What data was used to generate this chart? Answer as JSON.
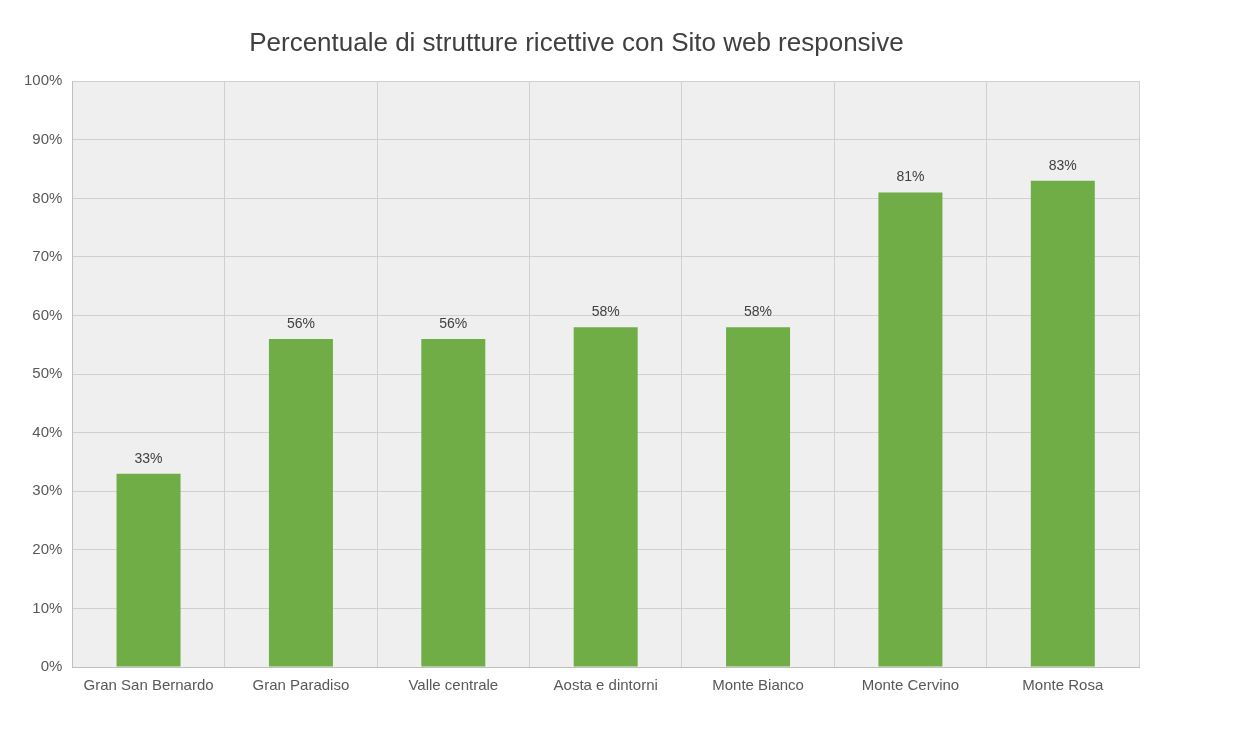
{
  "chart_data": {
    "type": "bar",
    "title": "Percentuale di strutture ricettive con Sito web responsive",
    "categories": [
      "Gran San Bernardo",
      "Gran Paradiso",
      "Valle centrale",
      "Aosta e dintorni",
      "Monte Bianco",
      "Monte Cervino",
      "Monte Rosa"
    ],
    "values": [
      33,
      56,
      56,
      58,
      58,
      81,
      83
    ],
    "value_labels": [
      "33%",
      "56%",
      "56%",
      "58%",
      "58%",
      "81%",
      "83%"
    ],
    "color": "#70ad47",
    "ylim": [
      0,
      100
    ],
    "yticks": [
      {
        "value": 0,
        "label": "0%"
      },
      {
        "value": 10,
        "label": "10%"
      },
      {
        "value": 20,
        "label": "20%"
      },
      {
        "value": 30,
        "label": "30%"
      },
      {
        "value": 40,
        "label": "40%"
      },
      {
        "value": 50,
        "label": "50%"
      },
      {
        "value": 60,
        "label": "60%"
      },
      {
        "value": 70,
        "label": "70%"
      },
      {
        "value": 80,
        "label": "80%"
      },
      {
        "value": 90,
        "label": "90%"
      },
      {
        "value": 100,
        "label": "100%"
      }
    ],
    "grid": true
  }
}
